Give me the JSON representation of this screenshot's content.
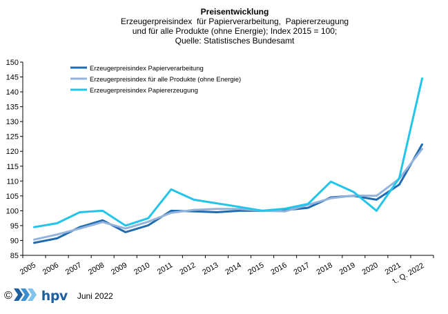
{
  "title": {
    "main": "Preisentwicklung",
    "line1": "Erzeugerpreisindex  für Papierverarbeitung,  Papiererzeugung",
    "line2": "und für alle Produkte (ohne Energie); Index 2015 = 100;",
    "line3": "Quelle: Statistisches Bundesamt"
  },
  "chart_data": {
    "type": "line",
    "title": "Preisentwicklung",
    "categories": [
      "2005",
      "2006",
      "2007",
      "2008",
      "2009",
      "2010",
      "2011",
      "2012",
      "2013",
      "2014",
      "2015",
      "2016",
      "2017",
      "2018",
      "2019",
      "2020",
      "2021",
      "1. Q. 2022"
    ],
    "ylim": [
      85,
      150
    ],
    "yticks": [
      85,
      90,
      95,
      100,
      105,
      110,
      115,
      120,
      125,
      130,
      135,
      140,
      145,
      150
    ],
    "grid": false,
    "legend_position": "top-left",
    "series": [
      {
        "name": "Erzeugerpreisindex Papierverarbeitung",
        "color": "#1f6bb0",
        "values": [
          89.2,
          90.7,
          94.5,
          96.8,
          92.8,
          95.1,
          100.0,
          99.8,
          99.5,
          100.0,
          100.0,
          100.2,
          101.0,
          104.5,
          105.0,
          103.7,
          108.8,
          122.3
        ]
      },
      {
        "name": "Erzeugerpreisindex für alle Produkte (ohne Energie)",
        "color": "#94b3dc",
        "values": [
          90.3,
          92.0,
          94.0,
          96.2,
          94.0,
          96.3,
          99.3,
          100.3,
          100.6,
          100.6,
          100.0,
          99.8,
          102.0,
          104.2,
          105.1,
          105.0,
          110.8,
          120.8
        ]
      },
      {
        "name": "Erzeugerpreisindex Papiererzeugung",
        "color": "#22c4ea",
        "values": [
          94.5,
          95.8,
          99.5,
          100.0,
          95.0,
          97.5,
          107.2,
          103.7,
          102.5,
          101.3,
          100.0,
          100.7,
          102.3,
          109.8,
          106.3,
          100.0,
          111.0,
          144.5
        ]
      }
    ]
  },
  "footer": {
    "copyright": "©",
    "brand": "hpv",
    "date": "Juni 2022"
  }
}
